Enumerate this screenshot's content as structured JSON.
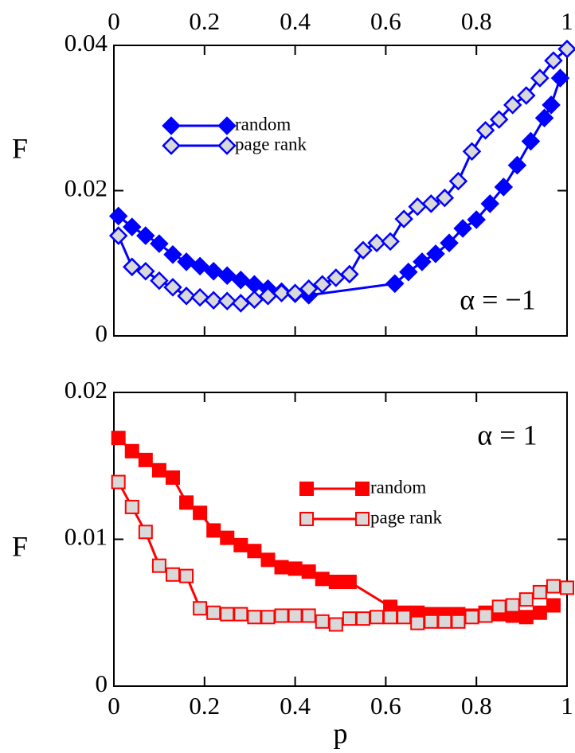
{
  "chart_data": [
    {
      "type": "line",
      "ylabel": "F",
      "annotation": "α = −1",
      "xaxis_side": "top",
      "legend": "upper left",
      "xlim": [
        0,
        1
      ],
      "xticks": [
        0,
        0.2,
        0.4,
        0.6,
        0.8,
        1
      ],
      "ylim": [
        0,
        0.04
      ],
      "yticks": [
        0,
        0.02,
        0.04
      ],
      "series": [
        {
          "name": "random",
          "color": "#0000ff",
          "marker": "diamond",
          "filled": true,
          "x": [
            0.01,
            0.04,
            0.07,
            0.1,
            0.13,
            0.16,
            0.19,
            0.22,
            0.25,
            0.28,
            0.31,
            0.34,
            0.37,
            0.4,
            0.43,
            0.62,
            0.65,
            0.68,
            0.71,
            0.74,
            0.77,
            0.8,
            0.83,
            0.86,
            0.89,
            0.92,
            0.95,
            0.965,
            0.985
          ],
          "values": [
            0.0165,
            0.015,
            0.0138,
            0.0127,
            0.0112,
            0.0102,
            0.0096,
            0.0089,
            0.0083,
            0.0077,
            0.0071,
            0.0065,
            0.0061,
            0.0058,
            0.0056,
            0.0072,
            0.0088,
            0.0102,
            0.0113,
            0.0128,
            0.0148,
            0.016,
            0.0182,
            0.0205,
            0.0235,
            0.0268,
            0.03,
            0.0318,
            0.0355
          ]
        },
        {
          "name": "page rank",
          "color": "#0000ff",
          "marker": "diamond",
          "filled": false,
          "x": [
            0.01,
            0.04,
            0.07,
            0.1,
            0.13,
            0.16,
            0.19,
            0.22,
            0.25,
            0.28,
            0.31,
            0.34,
            0.37,
            0.4,
            0.43,
            0.46,
            0.49,
            0.52,
            0.55,
            0.58,
            0.61,
            0.64,
            0.67,
            0.7,
            0.73,
            0.76,
            0.79,
            0.82,
            0.85,
            0.88,
            0.91,
            0.94,
            0.97,
            1
          ],
          "values": [
            0.0138,
            0.0095,
            0.0089,
            0.0076,
            0.0067,
            0.0055,
            0.0053,
            0.0049,
            0.0048,
            0.0045,
            0.005,
            0.0055,
            0.0059,
            0.0059,
            0.0065,
            0.0071,
            0.008,
            0.0085,
            0.0118,
            0.0128,
            0.013,
            0.0161,
            0.0178,
            0.0182,
            0.019,
            0.0213,
            0.0254,
            0.0283,
            0.0298,
            0.0318,
            0.0331,
            0.0355,
            0.0379,
            0.0395
          ]
        }
      ]
    },
    {
      "type": "line",
      "ylabel": "F",
      "xlabel": "p",
      "annotation": "α = 1",
      "xaxis_side": "bottom",
      "legend": "center right",
      "xlim": [
        0,
        1
      ],
      "xticks": [
        0,
        0.2,
        0.4,
        0.6,
        0.8,
        1
      ],
      "ylim": [
        0,
        0.02
      ],
      "yticks": [
        0,
        0.01,
        0.02
      ],
      "series": [
        {
          "name": "random",
          "color": "#ff0000",
          "marker": "square",
          "filled": true,
          "x": [
            0.01,
            0.04,
            0.07,
            0.1,
            0.13,
            0.16,
            0.19,
            0.22,
            0.25,
            0.28,
            0.31,
            0.34,
            0.37,
            0.4,
            0.43,
            0.46,
            0.49,
            0.52,
            0.61,
            0.64,
            0.67,
            0.7,
            0.73,
            0.76,
            0.79,
            0.82,
            0.85,
            0.88,
            0.91,
            0.94,
            0.97
          ],
          "values": [
            0.0169,
            0.016,
            0.0154,
            0.0147,
            0.0142,
            0.0125,
            0.0118,
            0.0106,
            0.0101,
            0.0096,
            0.0092,
            0.0086,
            0.0081,
            0.008,
            0.0078,
            0.0073,
            0.0071,
            0.0071,
            0.0054,
            0.005,
            0.005,
            0.0049,
            0.0049,
            0.0049,
            0.0048,
            0.005,
            0.0049,
            0.0048,
            0.0047,
            0.005,
            0.0055
          ]
        },
        {
          "name": "page rank",
          "color": "#ff0000",
          "marker": "square",
          "filled": false,
          "x": [
            0.01,
            0.04,
            0.07,
            0.1,
            0.13,
            0.16,
            0.19,
            0.22,
            0.25,
            0.28,
            0.31,
            0.34,
            0.37,
            0.4,
            0.43,
            0.46,
            0.49,
            0.52,
            0.55,
            0.58,
            0.61,
            0.64,
            0.67,
            0.7,
            0.73,
            0.76,
            0.79,
            0.82,
            0.85,
            0.88,
            0.91,
            0.94,
            0.97,
            1
          ],
          "values": [
            0.0139,
            0.0122,
            0.0105,
            0.0082,
            0.0076,
            0.0075,
            0.0053,
            0.005,
            0.0049,
            0.0049,
            0.0047,
            0.0047,
            0.0048,
            0.0048,
            0.0048,
            0.0044,
            0.0042,
            0.0046,
            0.0046,
            0.0047,
            0.0047,
            0.0047,
            0.0043,
            0.0044,
            0.0044,
            0.0044,
            0.0047,
            0.0048,
            0.0054,
            0.0055,
            0.0059,
            0.0064,
            0.0068,
            0.0067
          ]
        }
      ]
    }
  ]
}
